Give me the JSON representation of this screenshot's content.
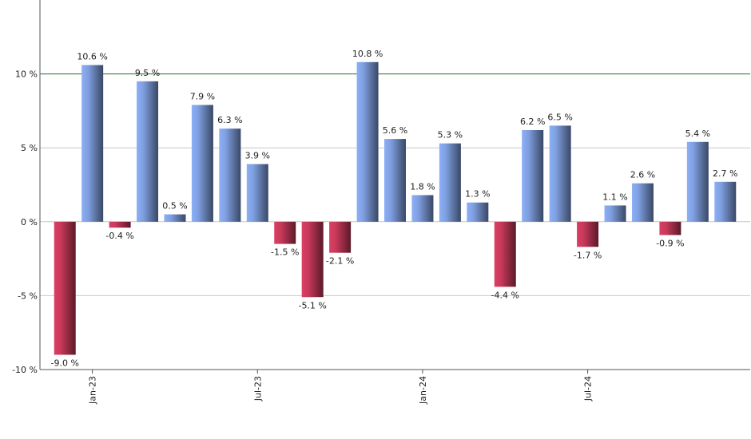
{
  "chart_data": {
    "type": "bar",
    "categories": [
      null,
      "Jan-23",
      null,
      null,
      null,
      null,
      null,
      "Jul-23",
      null,
      null,
      null,
      null,
      null,
      "Jan-24",
      null,
      null,
      null,
      null,
      null,
      "Jul-24",
      null,
      null,
      null,
      null,
      null
    ],
    "values": [
      -9.0,
      10.6,
      -0.4,
      9.5,
      0.5,
      7.9,
      6.3,
      3.9,
      -1.5,
      -5.1,
      -2.1,
      10.8,
      5.6,
      1.8,
      5.3,
      1.3,
      -4.4,
      6.2,
      6.5,
      -1.7,
      1.1,
      2.6,
      -0.9,
      5.4,
      2.7
    ],
    "value_labels": [
      "-9.0 %",
      "10.6 %",
      "-0.4 %",
      "9.5 %",
      "0.5 %",
      "7.9 %",
      "6.3 %",
      "3.9 %",
      "-1.5 %",
      "-5.1 %",
      "-2.1 %",
      "10.8 %",
      "5.6 %",
      "1.8 %",
      "5.3 %",
      "1.3 %",
      "-4.4 %",
      "6.2 %",
      "6.5 %",
      "-1.7 %",
      "1.1 %",
      "2.6 %",
      "-0.9 %",
      "5.4 %",
      "2.7 %"
    ],
    "positive_color": "#7f9fe0",
    "negative_color": "#c8395a",
    "ylim": [
      -10,
      15
    ],
    "yticks": [
      {
        "value": -10,
        "label": "-10 %"
      },
      {
        "value": -5,
        "label": "-5 %"
      },
      {
        "value": 0,
        "label": "0 %"
      },
      {
        "value": 5,
        "label": "5 %"
      },
      {
        "value": 10,
        "label": "10 %"
      }
    ],
    "grid": true,
    "reference_line": {
      "value": 10,
      "color": "#2e7d32"
    }
  }
}
